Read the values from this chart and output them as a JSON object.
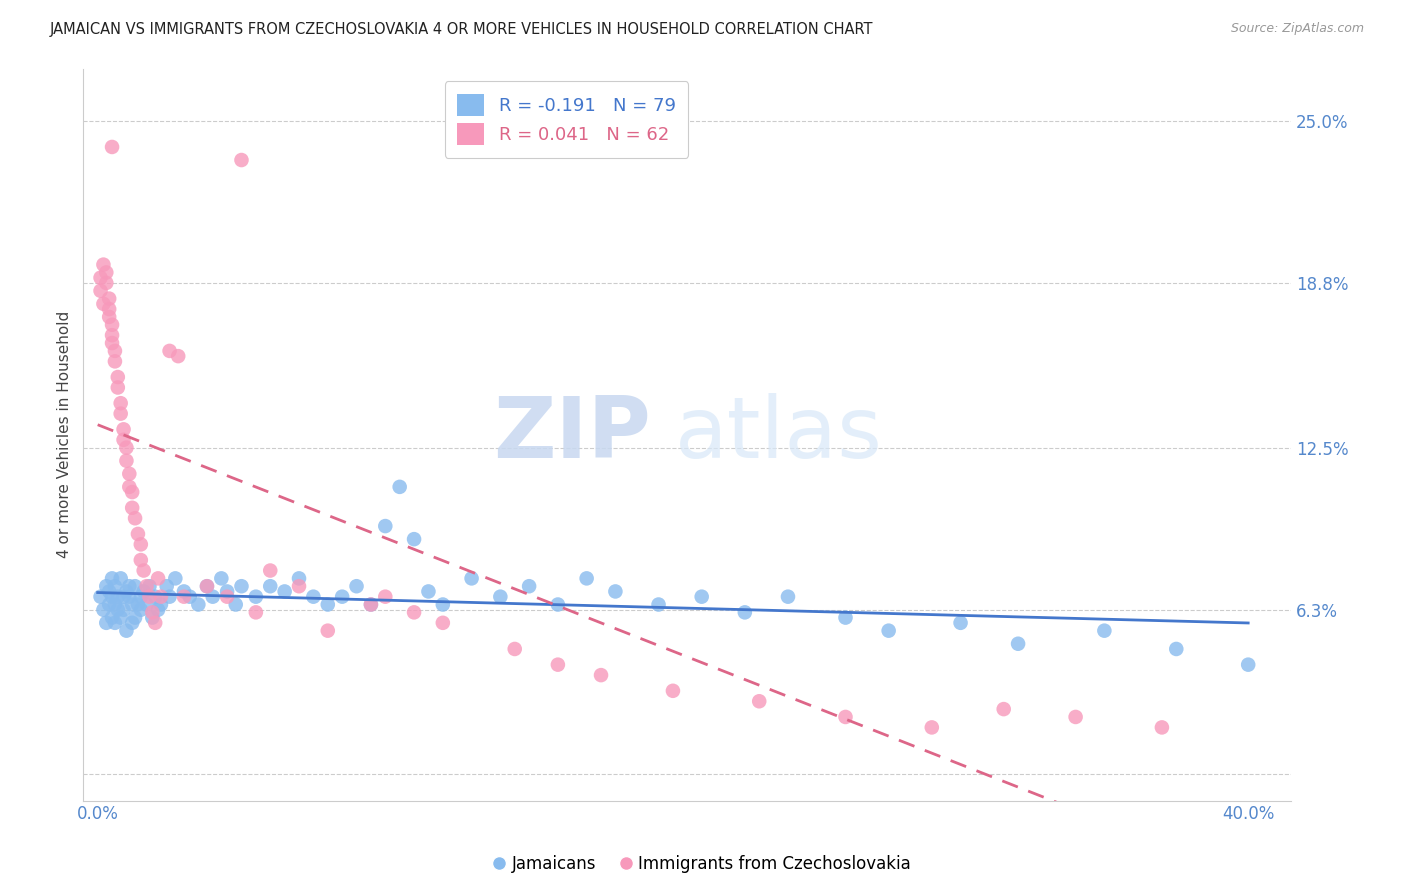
{
  "title": "JAMAICAN VS IMMIGRANTS FROM CZECHOSLOVAKIA 4 OR MORE VEHICLES IN HOUSEHOLD CORRELATION CHART",
  "source": "Source: ZipAtlas.com",
  "ylabel": "4 or more Vehicles in Household",
  "xlabel_ticks": [
    "0.0%",
    "",
    "",
    "",
    "40.0%"
  ],
  "xlabel_vals": [
    0.0,
    0.1,
    0.2,
    0.3,
    0.4
  ],
  "right_ytick_labels": [
    "25.0%",
    "18.8%",
    "12.5%",
    "6.3%",
    ""
  ],
  "right_ytick_vals": [
    0.25,
    0.188,
    0.125,
    0.063,
    0.0
  ],
  "ylim": [
    -0.01,
    0.27
  ],
  "xlim": [
    -0.005,
    0.415
  ],
  "blue_R": -0.191,
  "blue_N": 79,
  "pink_R": 0.041,
  "pink_N": 62,
  "blue_color": "#88BBEE",
  "pink_color": "#F799BB",
  "blue_line_color": "#4477CC",
  "pink_line_color": "#DD6688",
  "legend_blue_label": "Jamaicans",
  "legend_pink_label": "Immigrants from Czechoslovakia",
  "watermark_zip": "ZIP",
  "watermark_atlas": "atlas",
  "blue_x": [
    0.001,
    0.002,
    0.003,
    0.003,
    0.004,
    0.004,
    0.005,
    0.005,
    0.005,
    0.006,
    0.006,
    0.006,
    0.007,
    0.007,
    0.008,
    0.008,
    0.009,
    0.009,
    0.01,
    0.01,
    0.011,
    0.011,
    0.012,
    0.012,
    0.013,
    0.013,
    0.014,
    0.015,
    0.015,
    0.016,
    0.017,
    0.018,
    0.019,
    0.02,
    0.021,
    0.022,
    0.024,
    0.025,
    0.027,
    0.03,
    0.032,
    0.035,
    0.038,
    0.04,
    0.043,
    0.045,
    0.048,
    0.05,
    0.055,
    0.06,
    0.065,
    0.07,
    0.075,
    0.08,
    0.085,
    0.09,
    0.095,
    0.1,
    0.105,
    0.11,
    0.115,
    0.12,
    0.13,
    0.14,
    0.15,
    0.16,
    0.17,
    0.18,
    0.195,
    0.21,
    0.225,
    0.24,
    0.26,
    0.275,
    0.3,
    0.32,
    0.35,
    0.375,
    0.4
  ],
  "blue_y": [
    0.068,
    0.063,
    0.072,
    0.058,
    0.065,
    0.07,
    0.075,
    0.068,
    0.06,
    0.072,
    0.065,
    0.058,
    0.068,
    0.063,
    0.075,
    0.06,
    0.068,
    0.063,
    0.07,
    0.055,
    0.068,
    0.072,
    0.065,
    0.058,
    0.072,
    0.06,
    0.065,
    0.068,
    0.063,
    0.07,
    0.065,
    0.072,
    0.06,
    0.068,
    0.063,
    0.065,
    0.072,
    0.068,
    0.075,
    0.07,
    0.068,
    0.065,
    0.072,
    0.068,
    0.075,
    0.07,
    0.065,
    0.072,
    0.068,
    0.072,
    0.07,
    0.075,
    0.068,
    0.065,
    0.068,
    0.072,
    0.065,
    0.095,
    0.11,
    0.09,
    0.07,
    0.065,
    0.075,
    0.068,
    0.072,
    0.065,
    0.075,
    0.07,
    0.065,
    0.068,
    0.062,
    0.068,
    0.06,
    0.055,
    0.058,
    0.05,
    0.055,
    0.048,
    0.042
  ],
  "pink_x": [
    0.001,
    0.001,
    0.002,
    0.002,
    0.003,
    0.003,
    0.004,
    0.004,
    0.004,
    0.005,
    0.005,
    0.005,
    0.006,
    0.006,
    0.007,
    0.007,
    0.008,
    0.008,
    0.009,
    0.009,
    0.01,
    0.01,
    0.011,
    0.011,
    0.012,
    0.012,
    0.013,
    0.014,
    0.015,
    0.015,
    0.016,
    0.017,
    0.018,
    0.019,
    0.02,
    0.021,
    0.022,
    0.025,
    0.028,
    0.03,
    0.038,
    0.045,
    0.055,
    0.06,
    0.07,
    0.08,
    0.095,
    0.1,
    0.11,
    0.12,
    0.145,
    0.16,
    0.175,
    0.2,
    0.23,
    0.26,
    0.29,
    0.315,
    0.34,
    0.37,
    0.005,
    0.05
  ],
  "pink_y": [
    0.19,
    0.185,
    0.195,
    0.18,
    0.192,
    0.188,
    0.175,
    0.182,
    0.178,
    0.172,
    0.168,
    0.165,
    0.162,
    0.158,
    0.152,
    0.148,
    0.142,
    0.138,
    0.132,
    0.128,
    0.125,
    0.12,
    0.115,
    0.11,
    0.108,
    0.102,
    0.098,
    0.092,
    0.088,
    0.082,
    0.078,
    0.072,
    0.068,
    0.062,
    0.058,
    0.075,
    0.068,
    0.162,
    0.16,
    0.068,
    0.072,
    0.068,
    0.062,
    0.078,
    0.072,
    0.055,
    0.065,
    0.068,
    0.062,
    0.058,
    0.048,
    0.042,
    0.038,
    0.032,
    0.028,
    0.022,
    0.018,
    0.025,
    0.022,
    0.018,
    0.24,
    0.235
  ]
}
